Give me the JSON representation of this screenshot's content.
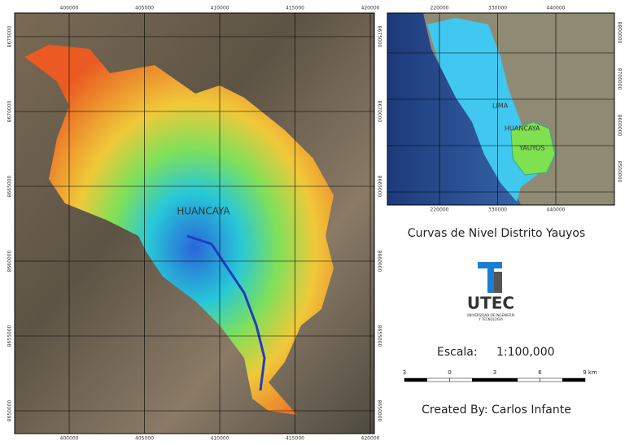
{
  "main_map": {
    "x_labels": [
      "400000",
      "405000",
      "410000",
      "415000",
      "420000"
    ],
    "y_labels": [
      "8675000",
      "8670000",
      "8665000",
      "8660000",
      "8655000",
      "8650000"
    ],
    "place_label": "HUANCAYA"
  },
  "inset_map": {
    "x_labels": [
      "220000",
      "330000",
      "440000"
    ],
    "y_labels": [
      "8800000",
      "8700000",
      "8600000",
      "8500000"
    ],
    "labels": {
      "lima": "LIMA",
      "huancaya": "HUANCAYA",
      "yauyos": "YAUYOS"
    }
  },
  "title": "Curvas de Nivel Distrito Yauyos",
  "logo": {
    "name": "UTEC",
    "subtitle_1": "UNIVERSIDAD DE INGENIERÍA",
    "subtitle_2": "Y TECNOLOGÍA"
  },
  "scale": {
    "label": "Escala:",
    "value": "1:100,000",
    "bar_labels": [
      "3",
      "0",
      "3",
      "6",
      "9 km"
    ]
  },
  "credit": "Created By: Carlos Infante"
}
